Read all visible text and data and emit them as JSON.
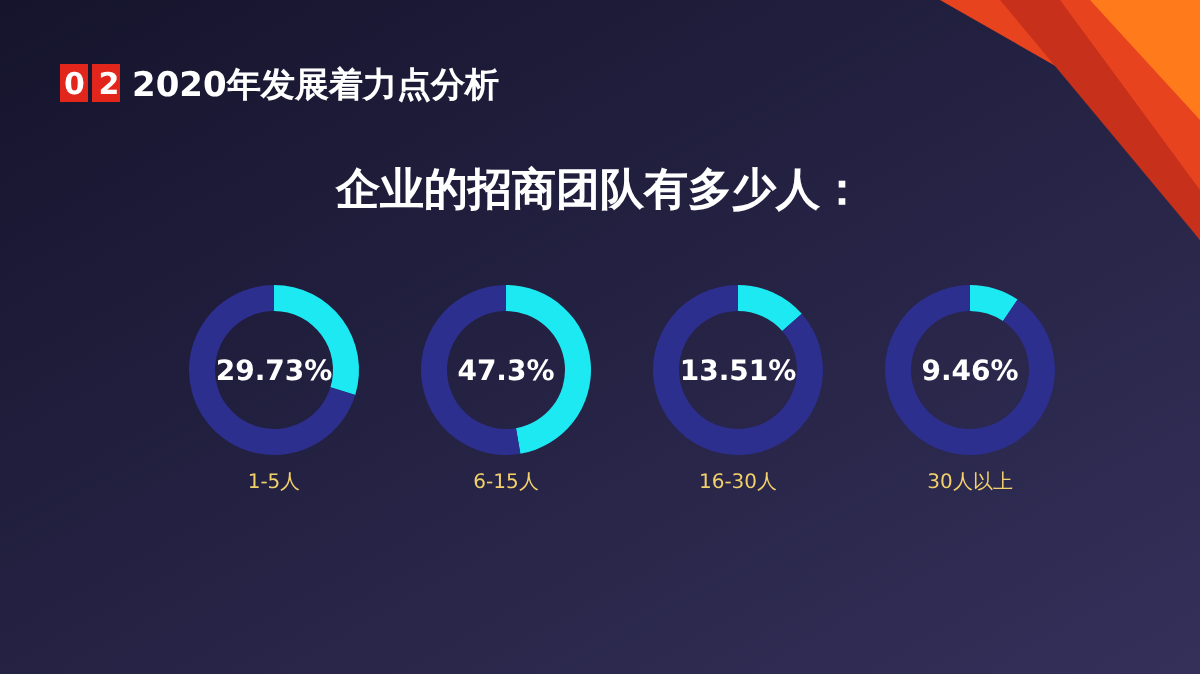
{
  "chart_data": [
    {
      "type": "donut",
      "title": "1-5人",
      "annotations": [
        "02",
        "2020年发展着力点分析",
        "企业的招商团队有多少人：",
        "29.73%"
      ],
      "categories": [
        null,
        null
      ],
      "values": [
        29.73,
        70.27
      ],
      "colors": [
        "#1de9f2",
        "#2c2f8e"
      ]
    },
    {
      "type": "donut",
      "title": "6-15人",
      "annotations": [
        "47.3%"
      ],
      "categories": [
        null,
        null
      ],
      "values": [
        47.3,
        52.7
      ],
      "colors": [
        "#1de9f2",
        "#2c2f8e"
      ]
    },
    {
      "type": "donut",
      "title": "16-30人",
      "annotations": [
        "13.51%"
      ],
      "categories": [
        null,
        null
      ],
      "values": [
        13.51,
        86.49
      ],
      "colors": [
        "#1de9f2",
        "#2c2f8e"
      ]
    },
    {
      "type": "donut",
      "title": "30人以上",
      "annotations": [
        "9.46%"
      ],
      "categories": [
        null,
        null
      ],
      "values": [
        9.46,
        90.54
      ],
      "colors": [
        "#1de9f2",
        "#2c2f8e"
      ]
    }
  ]
}
